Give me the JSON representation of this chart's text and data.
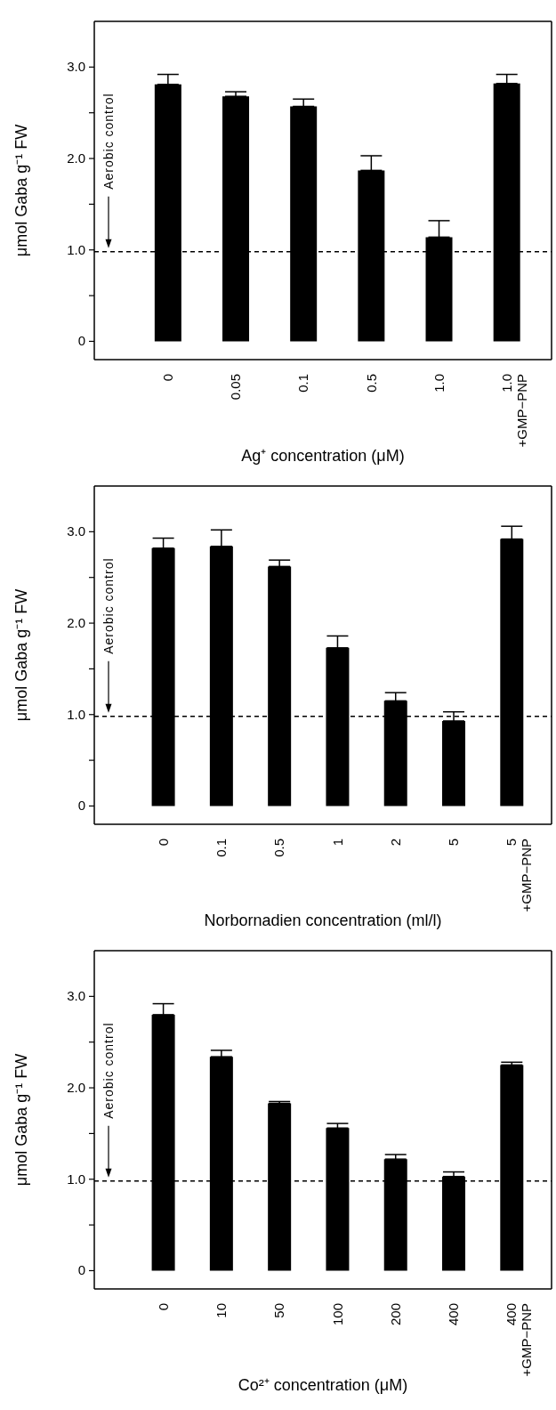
{
  "chart_data": [
    {
      "type": "bar",
      "categories": [
        "0",
        "0.05",
        "0.1",
        "0.5",
        "1.0",
        "1.0\n+GMP−PNP"
      ],
      "values": [
        2.81,
        2.68,
        2.57,
        1.87,
        1.14,
        2.82
      ],
      "color": "#000000",
      "errors": [
        [
          2.81,
          2.92
        ],
        [
          2.68,
          2.73
        ],
        [
          2.57,
          2.65
        ],
        [
          1.87,
          2.03
        ],
        [
          1.14,
          1.32
        ],
        [
          2.82,
          2.92
        ]
      ],
      "xlabel": "Ag⁺ concentration (μM)",
      "ylabel": "μmol Gaba g⁻¹ FW",
      "ylim": [
        -0.2,
        3.5
      ],
      "yticks": [
        {
          "value": 0,
          "label": "0"
        },
        {
          "value": 0.5,
          "label": null
        },
        {
          "value": 1,
          "label": "1.0"
        },
        {
          "value": 1.5,
          "label": null
        },
        {
          "value": 2,
          "label": "2.0"
        },
        {
          "value": 2.5,
          "label": null
        },
        {
          "value": 3,
          "label": "3.0"
        }
      ],
      "ref_lines": [
        {
          "axis": "y",
          "value": 0.98,
          "label": "Aerobic control",
          "line_style": "dashed",
          "color": "#000000"
        }
      ],
      "grid": false,
      "legend": false
    },
    {
      "type": "bar",
      "categories": [
        "0",
        "0.1",
        "0.5",
        "1",
        "2",
        "5",
        "5\n+GMP−PNP"
      ],
      "values": [
        2.82,
        2.84,
        2.62,
        1.73,
        1.15,
        0.93,
        2.92
      ],
      "color": "#000000",
      "errors": [
        [
          2.82,
          2.93
        ],
        [
          2.84,
          3.02
        ],
        [
          2.62,
          2.69
        ],
        [
          1.73,
          1.86
        ],
        [
          1.15,
          1.24
        ],
        [
          0.93,
          1.03
        ],
        [
          2.92,
          3.06
        ]
      ],
      "xlabel": "Norbornadien concentration (ml/l)",
      "ylabel": "μmol Gaba g⁻¹ FW",
      "ylim": [
        -0.2,
        3.5
      ],
      "yticks": [
        {
          "value": 0,
          "label": "0"
        },
        {
          "value": 0.5,
          "label": null
        },
        {
          "value": 1,
          "label": "1.0"
        },
        {
          "value": 1.5,
          "label": null
        },
        {
          "value": 2,
          "label": "2.0"
        },
        {
          "value": 2.5,
          "label": null
        },
        {
          "value": 3,
          "label": "3.0"
        }
      ],
      "ref_lines": [
        {
          "axis": "y",
          "value": 0.98,
          "label": "Aerobic control",
          "line_style": "dashed",
          "color": "#000000"
        }
      ],
      "grid": false,
      "legend": false
    },
    {
      "type": "bar",
      "categories": [
        "0",
        "10",
        "50",
        "100",
        "200",
        "400",
        "400\n+GMP−PNP"
      ],
      "values": [
        2.8,
        2.34,
        1.83,
        1.56,
        1.22,
        1.03,
        2.25
      ],
      "color": "#000000",
      "errors": [
        [
          2.8,
          2.92
        ],
        [
          2.34,
          2.41
        ],
        [
          1.83,
          1.85
        ],
        [
          1.56,
          1.61
        ],
        [
          1.22,
          1.27
        ],
        [
          1.03,
          1.08
        ],
        [
          2.25,
          2.28
        ]
      ],
      "xlabel": "Co²⁺ concentration (μM)",
      "ylabel": "μmol Gaba g⁻¹ FW",
      "ylim": [
        -0.2,
        3.5
      ],
      "yticks": [
        {
          "value": 0,
          "label": "0"
        },
        {
          "value": 0.5,
          "label": null
        },
        {
          "value": 1,
          "label": "1.0"
        },
        {
          "value": 1.5,
          "label": null
        },
        {
          "value": 2,
          "label": "2.0"
        },
        {
          "value": 2.5,
          "label": null
        },
        {
          "value": 3,
          "label": "3.0"
        }
      ],
      "ref_lines": [
        {
          "axis": "y",
          "value": 0.98,
          "label": "Aerobic control",
          "line_style": "dashed",
          "color": "#000000"
        }
      ],
      "grid": false,
      "legend": false
    }
  ]
}
